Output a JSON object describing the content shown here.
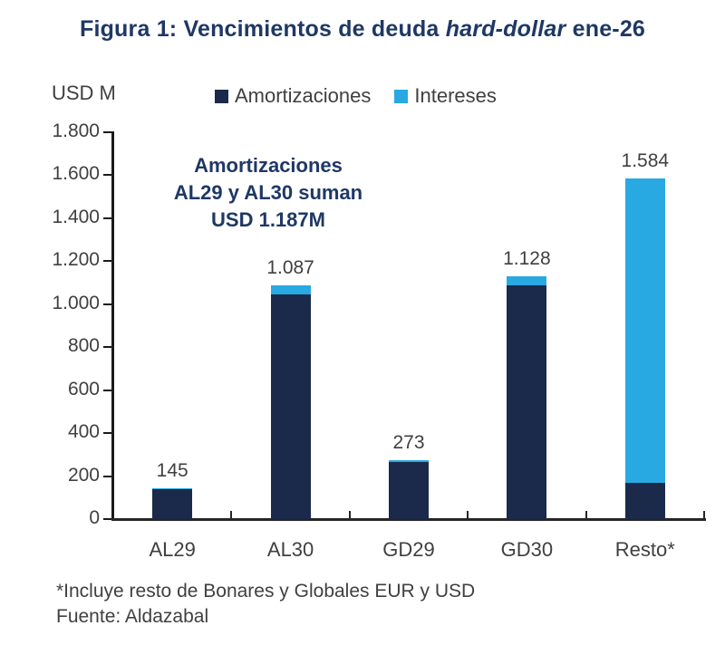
{
  "header": {
    "title_prefix": "Figura 1: Vencimientos de deuda ",
    "title_italic": "hard-dollar",
    "title_suffix": " ene-26"
  },
  "unit_label": "USD M",
  "annotation": {
    "lines": [
      "Amortizaciones",
      "AL29 y AL30 suman",
      "USD 1.187M"
    ]
  },
  "footer": {
    "note": "*Incluye resto de Bonares y Globales EUR y USD",
    "source": "Fuente: Aldazabal"
  },
  "colors": {
    "title_navy": "#1f3864",
    "amortizaciones": "#1b2a4b",
    "intereses": "#29a9e1",
    "text_gray": "#404040",
    "axis_black": "#1a1a1a"
  },
  "chart_data": {
    "type": "bar",
    "stacked": true,
    "title": "Figura 1: Vencimientos de deuda hard-dollar ene-26",
    "ylabel": "USD M",
    "xlabel": "",
    "grid": false,
    "legend_position": "top",
    "categories": [
      "AL29",
      "AL30",
      "GD29",
      "GD30",
      "Resto*"
    ],
    "series": [
      {
        "name": "Amortizaciones",
        "color": "#1b2a4b",
        "values": [
          140,
          1047,
          265,
          1086,
          170
        ]
      },
      {
        "name": "Intereses",
        "color": "#29a9e1",
        "values": [
          5,
          40,
          8,
          42,
          1414
        ]
      }
    ],
    "totals": [
      145,
      1087,
      273,
      1128,
      1584
    ],
    "value_labels": [
      "145",
      "1.087",
      "273",
      "1.128",
      "1.584"
    ],
    "annotation_text": "Amortizaciones AL29 y AL30 suman USD 1.187M",
    "ylim": [
      0,
      1800
    ],
    "ytick_step": 200,
    "ytick_labels": [
      "0",
      "200",
      "400",
      "600",
      "800",
      "1.000",
      "1.200",
      "1.400",
      "1.600",
      "1.800"
    ]
  }
}
